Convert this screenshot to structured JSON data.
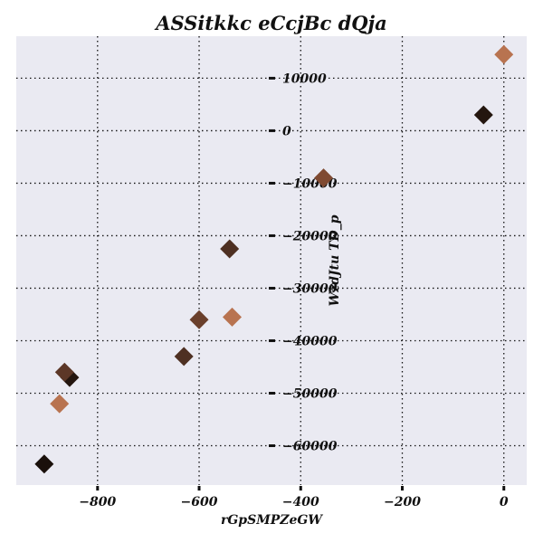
{
  "chart_data": {
    "type": "scatter",
    "title": "ASSitkkc eCcjBc dQja",
    "xlabel": "rGpSMPZeGW",
    "ylabel": "WzdJtu TD_p",
    "xlim": [
      -960,
      45
    ],
    "ylim": [
      -67500,
      18000
    ],
    "xticks": [
      -800,
      -600,
      -400,
      -200,
      0
    ],
    "xtick_labels": [
      "−800",
      "−600",
      "−400",
      "−200",
      "0"
    ],
    "yticks": [
      10000,
      0,
      -10000,
      -20000,
      -30000,
      -40000,
      -50000,
      -60000
    ],
    "ytick_labels": [
      "10000",
      "0",
      "−10000",
      "−20000",
      "−30000",
      "−40000",
      "−50000",
      "−60000"
    ],
    "grid": true,
    "background": "#eaeaf2",
    "marker": "diamond",
    "points": [
      {
        "x": 0,
        "y": 14500,
        "color": "#b87350"
      },
      {
        "x": -40,
        "y": 3000,
        "color": "#24160f"
      },
      {
        "x": -355,
        "y": -9000,
        "color": "#7f4a32"
      },
      {
        "x": -540,
        "y": -22500,
        "color": "#4e3022"
      },
      {
        "x": -535,
        "y": -35500,
        "color": "#b87350"
      },
      {
        "x": -600,
        "y": -36000,
        "color": "#6a3f2b"
      },
      {
        "x": -630,
        "y": -43000,
        "color": "#4e3022"
      },
      {
        "x": -855,
        "y": -47000,
        "color": "#24160f"
      },
      {
        "x": -865,
        "y": -46000,
        "color": "#5c3727"
      },
      {
        "x": -875,
        "y": -52000,
        "color": "#b87350"
      },
      {
        "x": -905,
        "y": -63500,
        "color": "#1a100b"
      }
    ]
  }
}
